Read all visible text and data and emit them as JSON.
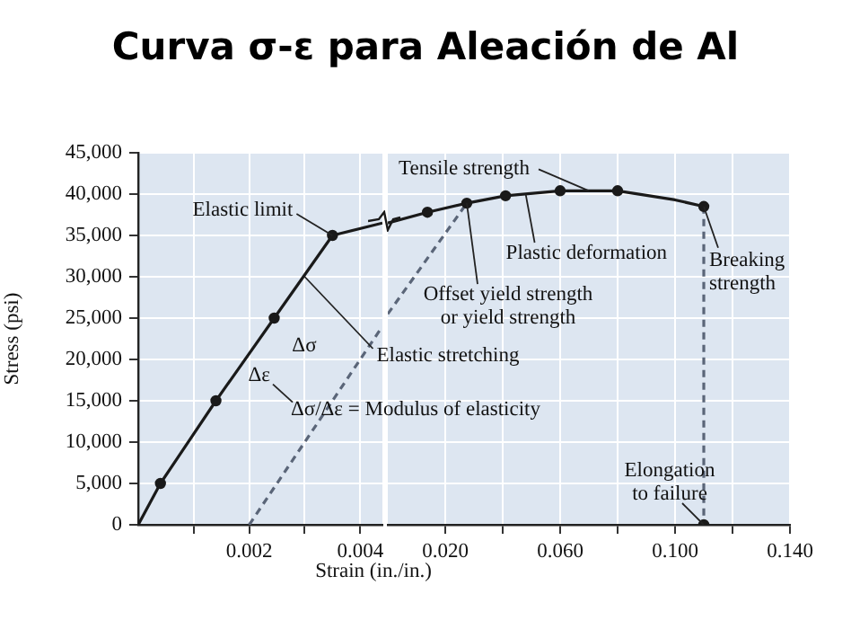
{
  "chart_data": [
    {
      "type": "line",
      "title": "Curva σ-ε para Aleación de Al",
      "ylabel": "Stress (psi)",
      "xlim": [
        0,
        0.0044
      ],
      "xticks": [
        {
          "value": 0.001,
          "label": null
        },
        0.002,
        {
          "value": 0.003,
          "label": null
        },
        0.004
      ],
      "ylim": [
        0,
        45000
      ],
      "yticks": [
        {
          "value": 0,
          "label": "0"
        },
        {
          "value": 5000,
          "label": "5,000"
        },
        {
          "value": 10000,
          "label": "10,000"
        },
        {
          "value": 15000,
          "label": "15,000"
        },
        {
          "value": 20000,
          "label": "20,000"
        },
        {
          "value": 25000,
          "label": "25,000"
        },
        {
          "value": 30000,
          "label": "30,000"
        },
        {
          "value": 35000,
          "label": "35,000"
        },
        {
          "value": 40000,
          "label": "40,000"
        },
        {
          "value": 45000,
          "label": "45,000"
        }
      ],
      "grid": true,
      "series": [
        {
          "type": "line",
          "color": "#1a1a1a",
          "marker": "none",
          "line_style": "solid",
          "x": [
            0,
            0.0004,
            0.0014,
            0.00245,
            0.0035,
            0.0044
          ],
          "values": [
            0,
            5000,
            15000,
            25000,
            35000,
            36500
          ]
        },
        {
          "type": "scatter",
          "color": "#1a1a1a",
          "marker": "circle",
          "x": [
            0.0004,
            0.0014,
            0.00245,
            0.0035
          ],
          "values": [
            5000,
            15000,
            25000,
            35000
          ]
        },
        {
          "type": "line",
          "color": "#5a6578",
          "marker": "none",
          "line_style": "dashed",
          "x": [
            0.002,
            0.0044
          ],
          "values": [
            0,
            24000
          ]
        }
      ],
      "annotations": [
        {
          "text": "Elastic limit",
          "x": 0.0035,
          "y": 35000
        },
        {
          "text": "Elastic stretching",
          "x": 0.003,
          "y": 30000
        },
        "Δσ",
        "Δε",
        "Δσ/Δε = Modulus of elasticity"
      ]
    },
    {
      "type": "line",
      "xlabel": "Strain (in./in.)",
      "tick_labels": "x",
      "xlim": [
        0,
        0.14
      ],
      "xticks": [
        {
          "value": 0.02,
          "label": "0.020"
        },
        {
          "value": 0.04,
          "label": null
        },
        {
          "value": 0.06,
          "label": "0.060"
        },
        {
          "value": 0.08,
          "label": null
        },
        {
          "value": 0.1,
          "label": "0.100"
        },
        {
          "value": 0.12,
          "label": null
        },
        {
          "value": 0.14,
          "label": "0.140"
        }
      ],
      "ylim": [
        0,
        45000
      ],
      "yticks": [
        0,
        5000,
        10000,
        15000,
        20000,
        25000,
        30000,
        35000,
        40000,
        45000
      ],
      "grid": true,
      "series": [
        {
          "type": "line",
          "color": "#1a1a1a",
          "marker": "none",
          "line_style": "solid",
          "x": [
            0,
            0.0138,
            0.0275,
            0.041,
            0.06,
            0.08,
            0.1,
            0.11
          ],
          "values": [
            36500,
            37800,
            38900,
            39800,
            40400,
            40400,
            39300,
            38500
          ]
        },
        {
          "type": "scatter",
          "color": "#1a1a1a",
          "marker": "circle",
          "x": [
            0.0138,
            0.0275,
            0.041,
            0.06,
            0.08,
            0.11,
            0.11
          ],
          "values": [
            37800,
            38900,
            39800,
            40400,
            40400,
            38500,
            0
          ]
        },
        {
          "type": "line",
          "color": "#5a6578",
          "marker": "none",
          "line_style": "dashed",
          "x": [
            0,
            0.0275
          ],
          "values": [
            25500,
            38900
          ]
        },
        {
          "type": "line",
          "color": "#5a6578",
          "marker": "none",
          "line_style": "dashed",
          "x": [
            0.11,
            0.11
          ],
          "values": [
            38500,
            0
          ]
        }
      ],
      "annotations": [
        {
          "text": "Tensile strength",
          "x": 0.07,
          "y": 40400
        },
        {
          "text": "Plastic deformation",
          "x": 0.048,
          "y": 40000
        },
        {
          "text": "Offset yield strength\nor yield strength",
          "x": 0.0275,
          "y": 38900
        },
        {
          "text": "Breaking\nstrength",
          "x": 0.11,
          "y": 38500
        },
        {
          "text": "Elongation\nto failure",
          "x": 0.11,
          "y": 0
        }
      ]
    }
  ]
}
